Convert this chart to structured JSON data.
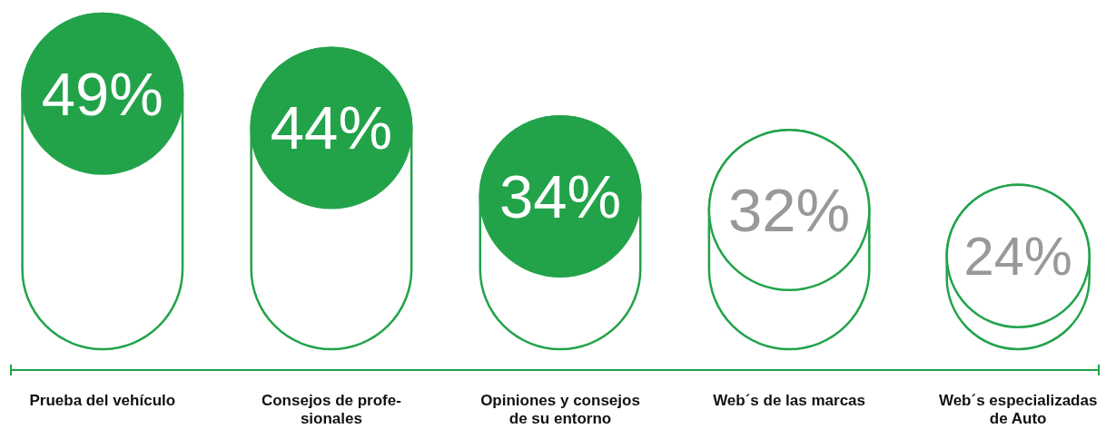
{
  "chart_data": {
    "type": "bar",
    "categories": [
      "Prueba del vehículo",
      "Consejos de profe-\nsionales",
      "Opiniones y consejos\nde su entorno",
      "Web´s de las marcas",
      "Web´s especializadas\nde Auto"
    ],
    "values": [
      49,
      44,
      34,
      32,
      24
    ],
    "colors": [
      "#22a34a",
      "#22a34a",
      "#22a34a",
      "#ffffff",
      "#ffffff"
    ],
    "value_labels": [
      "49%",
      "44%",
      "34%",
      "32%",
      "24%"
    ]
  }
}
